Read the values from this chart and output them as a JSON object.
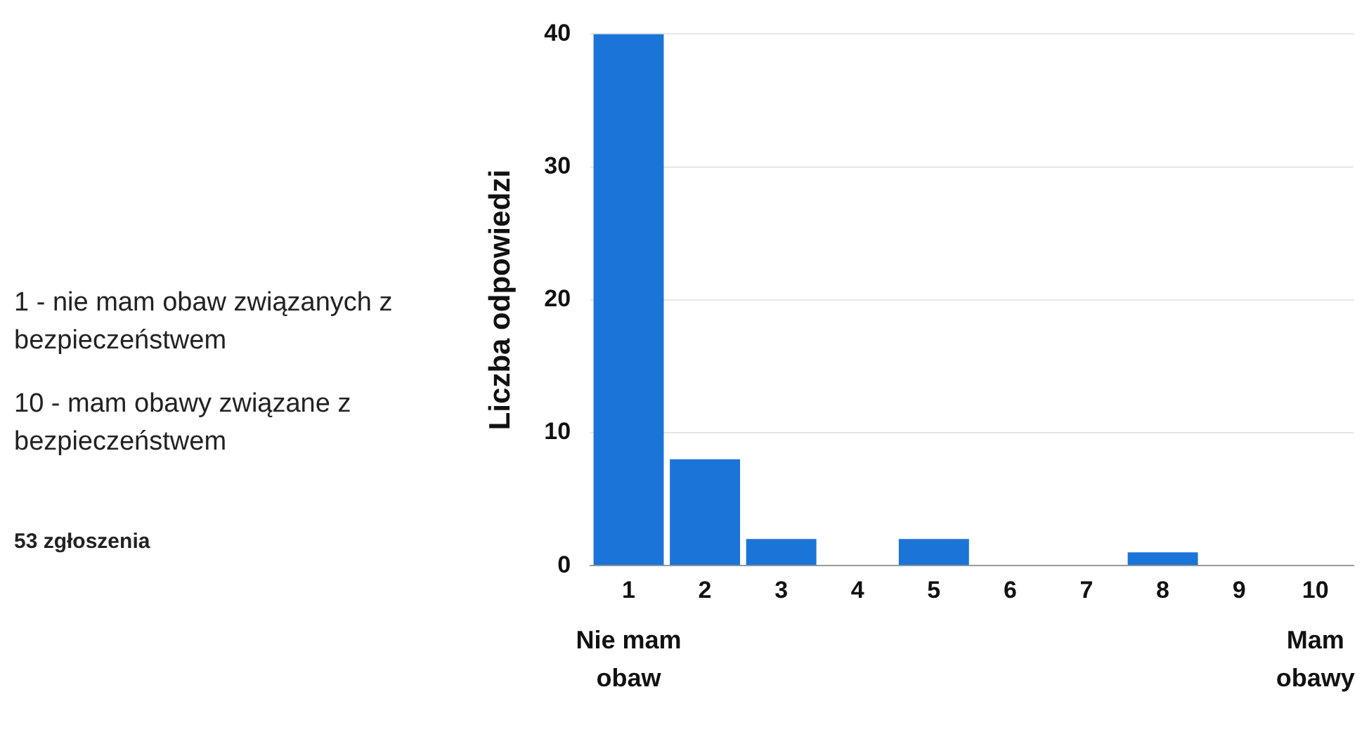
{
  "chart_data": {
    "type": "bar",
    "ylabel": "Liczba odpowiedzi",
    "categories": [
      "1",
      "2",
      "3",
      "4",
      "5",
      "6",
      "7",
      "8",
      "9",
      "10"
    ],
    "values": [
      40,
      8,
      2,
      0,
      2,
      0,
      0,
      1,
      0,
      0
    ],
    "color": "#1b74d8",
    "ylim": [
      0,
      40
    ],
    "yticks": [
      0,
      10,
      20,
      30,
      40
    ],
    "grid": "y",
    "legend": false,
    "annotations": [
      "1 - nie mam obaw związanych z bezpieczeństwem",
      "10 - mam obawy związane z bezpieczeństwem",
      "53 zgłoszenia",
      "Nie mam obaw",
      "Mam obawy"
    ]
  }
}
